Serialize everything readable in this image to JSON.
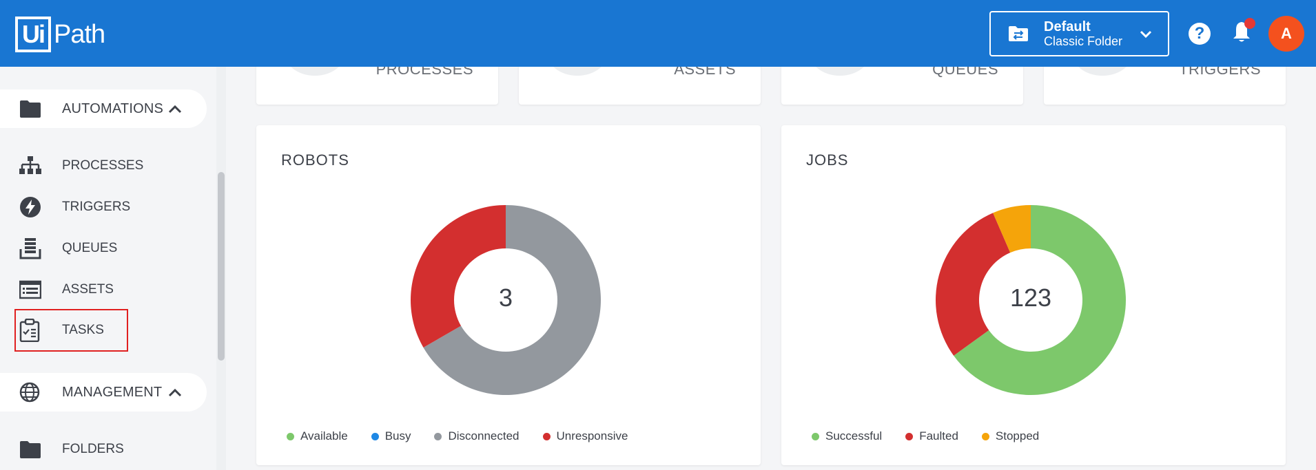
{
  "header": {
    "logo_box": "Ui",
    "logo_text": "Path",
    "folder_title": "Default",
    "folder_subtitle": "Classic Folder",
    "help_label": "?",
    "avatar_initial": "A"
  },
  "sidebar": {
    "automations_label": "AUTOMATIONS",
    "items": [
      {
        "label": "PROCESSES",
        "icon": "hierarchy-icon"
      },
      {
        "label": "TRIGGERS",
        "icon": "lightning-icon"
      },
      {
        "label": "QUEUES",
        "icon": "queue-icon"
      },
      {
        "label": "ASSETS",
        "icon": "list-icon"
      },
      {
        "label": "TASKS",
        "icon": "clipboard-check-icon"
      }
    ],
    "management_label": "MANAGEMENT",
    "folders_label": "FOLDERS"
  },
  "top_cards": [
    {
      "label": "PROCESSES"
    },
    {
      "label": "ASSETS"
    },
    {
      "label": "QUEUES"
    },
    {
      "label": "TRIGGERS"
    }
  ],
  "robots": {
    "title": "ROBOTS",
    "total": "3",
    "legend": [
      {
        "label": "Available",
        "color": "#7dc86b"
      },
      {
        "label": "Busy",
        "color": "#1e88e5"
      },
      {
        "label": "Disconnected",
        "color": "#93989e"
      },
      {
        "label": "Unresponsive",
        "color": "#d32f2f"
      }
    ]
  },
  "jobs": {
    "title": "JOBS",
    "total": "123",
    "legend": [
      {
        "label": "Successful",
        "color": "#7dc86b"
      },
      {
        "label": "Faulted",
        "color": "#d32f2f"
      },
      {
        "label": "Stopped",
        "color": "#f5a40a"
      }
    ]
  },
  "chart_data": [
    {
      "type": "pie",
      "title": "ROBOTS",
      "categories": [
        "Available",
        "Busy",
        "Disconnected",
        "Unresponsive"
      ],
      "values": [
        0,
        0,
        2,
        1
      ],
      "colors": [
        "#7dc86b",
        "#1e88e5",
        "#93989e",
        "#d32f2f"
      ],
      "center_label": "3"
    },
    {
      "type": "pie",
      "title": "JOBS",
      "categories": [
        "Successful",
        "Faulted",
        "Stopped"
      ],
      "values": [
        80,
        35,
        8
      ],
      "colors": [
        "#7dc86b",
        "#d32f2f",
        "#f5a40a"
      ],
      "center_label": "123"
    }
  ]
}
